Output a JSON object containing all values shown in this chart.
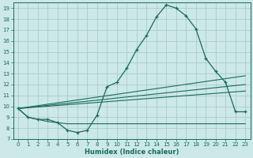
{
  "xlabel": "Humidex (Indice chaleur)",
  "bg_color": "#cce8e8",
  "grid_color": "#aacccc",
  "line_color": "#1a6b5a",
  "x_values": [
    0,
    1,
    2,
    3,
    4,
    5,
    6,
    7,
    8,
    9,
    10,
    11,
    12,
    13,
    14,
    15,
    16,
    17,
    18,
    19,
    20,
    21,
    22,
    23
  ],
  "main_line": [
    9.8,
    9.0,
    8.8,
    8.8,
    8.5,
    7.8,
    7.6,
    7.8,
    9.2,
    11.8,
    12.2,
    13.5,
    15.2,
    16.5,
    18.2,
    19.3,
    19.0,
    18.3,
    17.1,
    14.4,
    13.2,
    12.2,
    9.5,
    9.5
  ],
  "flat_line": [
    9.8,
    9.0,
    8.8,
    8.6,
    8.5,
    8.4,
    8.4,
    8.4,
    8.4,
    8.4,
    8.4,
    8.4,
    8.4,
    8.4,
    8.4,
    8.4,
    8.4,
    8.4,
    8.4,
    8.4,
    8.4,
    8.4,
    8.4,
    8.4
  ],
  "trend_lines": [
    {
      "x0": 0,
      "y0": 9.8,
      "x1": 23,
      "y1": 12.8
    },
    {
      "x0": 0,
      "y0": 9.8,
      "x1": 23,
      "y1": 12.0
    },
    {
      "x0": 0,
      "y0": 9.8,
      "x1": 23,
      "y1": 11.4
    }
  ],
  "ylim": [
    7,
    19.5
  ],
  "xlim": [
    -0.5,
    23.5
  ],
  "yticks": [
    7,
    8,
    9,
    10,
    11,
    12,
    13,
    14,
    15,
    16,
    17,
    18,
    19
  ],
  "xticks": [
    0,
    1,
    2,
    3,
    4,
    5,
    6,
    7,
    8,
    9,
    10,
    11,
    12,
    13,
    14,
    15,
    16,
    17,
    18,
    19,
    20,
    21,
    22,
    23
  ],
  "tick_fontsize": 5.0,
  "xlabel_fontsize": 6.0
}
